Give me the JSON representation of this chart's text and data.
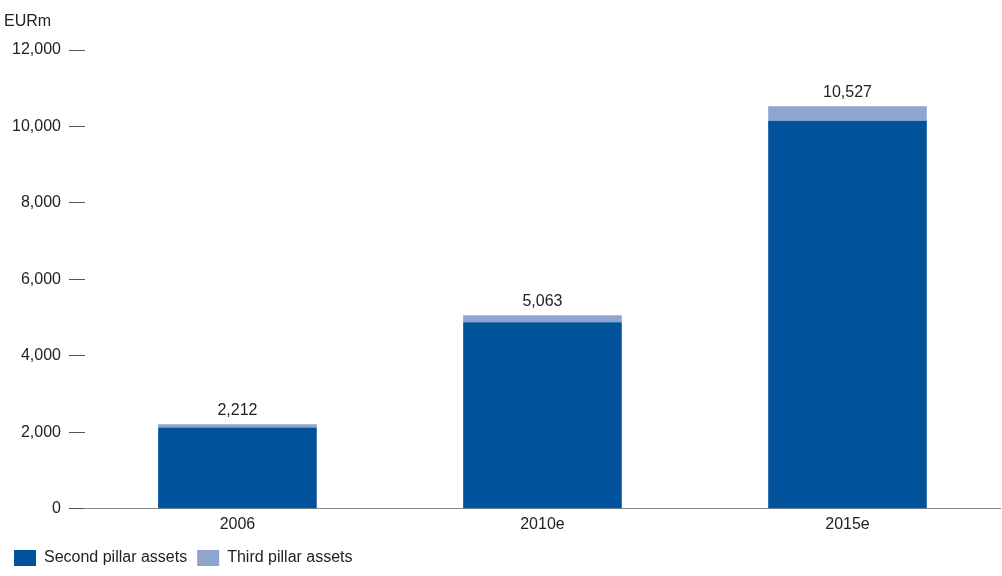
{
  "chart_data": {
    "type": "bar",
    "stacked": true,
    "ylabel": "EURm",
    "categories": [
      "2006",
      "2010e",
      "2015e"
    ],
    "series": [
      {
        "name": "Second pillar assets",
        "color": "#00529b",
        "values": [
          2129,
          4878,
          10147
        ]
      },
      {
        "name": "Third pillar assets",
        "color": "#8fa5cf",
        "values": [
          83,
          185,
          380
        ]
      }
    ],
    "totals": [
      "2,212",
      "5,063",
      "10,527"
    ],
    "ylim": [
      0,
      12000
    ],
    "yticks": [
      {
        "value": 0,
        "label": "0"
      },
      {
        "value": 2000,
        "label": "2,000"
      },
      {
        "value": 4000,
        "label": "4,000"
      },
      {
        "value": 6000,
        "label": "6,000"
      },
      {
        "value": 8000,
        "label": "8,000"
      },
      {
        "value": 10000,
        "label": "10,000"
      },
      {
        "value": 12000,
        "label": "12,000"
      }
    ],
    "grid": false,
    "legend": "bottom left"
  }
}
